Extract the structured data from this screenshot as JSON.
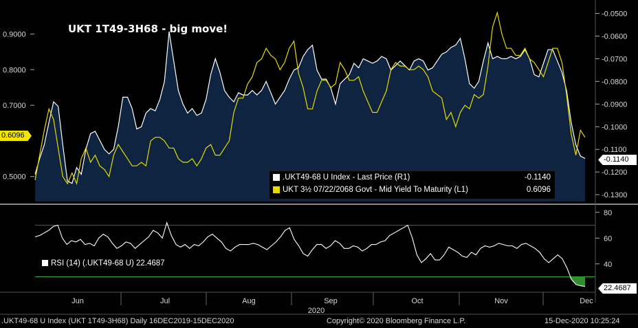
{
  "title": "UKT 1T49-3H68 - big move!",
  "legend": {
    "series1_label": ".UKT49-68 U Index - Last Price (R1)",
    "series1_value": "-0.1140",
    "series2_label": "UKT 3½  07/22/2068 Govt - Mid Yield To Maturity (L1)",
    "series2_value": "0.6096",
    "rsi_label": "RSI (14) (.UKT49-68 U) 22.4687"
  },
  "tags": {
    "left_value": "0.6096",
    "right_value": "-0.1140",
    "rsi_value": "22.4687"
  },
  "footer": {
    "left": ".UKT49-68 U Index (UKT 1T49-3H68)  Daily 16DEC2019-15DEC2020",
    "center": "Copyright© 2020 Bloomberg Finance L.P.",
    "right": "15-Dec-2020  10:25:24"
  },
  "x_year_label": "2020",
  "colors": {
    "spread_line": "#ffffff",
    "spread_fill": "#0e2440",
    "yield_line": "#e6dc00",
    "rsi_upper": "#d02020",
    "rsi_lower": "#3aa63a",
    "rsi_low_fill": "#2f8f2f"
  },
  "chart_data": [
    {
      "type": "line",
      "x_labels": [
        "Jun",
        "Jul",
        "Aug",
        "Sep",
        "Oct",
        "Nov",
        "Dec"
      ],
      "y_left_ticks": [
        "0.9000",
        "0.8000",
        "0.7000",
        "0.5000"
      ],
      "y_left_range": [
        0.43,
        0.98
      ],
      "y_right_ticks": [
        "-0.0500",
        "-0.0600",
        "-0.0700",
        "-0.0800",
        "-0.0900",
        "-0.1000",
        "-0.1100",
        "-0.1200",
        "-0.1300"
      ],
      "y_right_range": [
        -0.133,
        -0.0465
      ],
      "series": [
        {
          "name": ".UKT49-68 U Index - Last Price (R1)",
          "axis": "right",
          "values": [
            -0.121,
            -0.114,
            -0.108,
            -0.098,
            -0.089,
            -0.091,
            -0.108,
            -0.124,
            -0.125,
            -0.118,
            -0.121,
            -0.11,
            -0.103,
            -0.102,
            -0.106,
            -0.11,
            -0.112,
            -0.11,
            -0.1,
            -0.087,
            -0.087,
            -0.092,
            -0.101,
            -0.1,
            -0.094,
            -0.092,
            -0.093,
            -0.088,
            -0.08,
            -0.058,
            -0.071,
            -0.084,
            -0.09,
            -0.094,
            -0.092,
            -0.095,
            -0.094,
            -0.088,
            -0.077,
            -0.07,
            -0.076,
            -0.084,
            -0.087,
            -0.089,
            -0.085,
            -0.086,
            -0.086,
            -0.084,
            -0.086,
            -0.084,
            -0.08,
            -0.085,
            -0.09,
            -0.087,
            -0.084,
            -0.079,
            -0.075,
            -0.074,
            -0.069,
            -0.066,
            -0.064,
            -0.075,
            -0.079,
            -0.079,
            -0.083,
            -0.09,
            -0.081,
            -0.079,
            -0.077,
            -0.072,
            -0.074,
            -0.07,
            -0.071,
            -0.072,
            -0.071,
            -0.069,
            -0.07,
            -0.075,
            -0.073,
            -0.071,
            -0.073,
            -0.075,
            -0.071,
            -0.07,
            -0.071,
            -0.075,
            -0.074,
            -0.071,
            -0.068,
            -0.067,
            -0.065,
            -0.064,
            -0.061,
            -0.07,
            -0.081,
            -0.083,
            -0.08,
            -0.071,
            -0.063,
            -0.07,
            -0.069,
            -0.07,
            -0.07,
            -0.069,
            -0.07,
            -0.069,
            -0.066,
            -0.07,
            -0.077,
            -0.078,
            -0.072,
            -0.066,
            -0.066,
            -0.071,
            -0.076,
            -0.084,
            -0.098,
            -0.108,
            -0.113,
            -0.114
          ]
        },
        {
          "name": "UKT 3½  07/22/2068 Govt - Mid Yield To Maturity (L1)",
          "axis": "left",
          "values": [
            0.49,
            0.56,
            0.63,
            0.69,
            0.66,
            0.58,
            0.5,
            0.48,
            0.51,
            0.48,
            0.55,
            0.58,
            0.54,
            0.56,
            0.53,
            0.52,
            0.5,
            0.56,
            0.59,
            0.57,
            0.55,
            0.53,
            0.53,
            0.54,
            0.53,
            0.6,
            0.61,
            0.61,
            0.6,
            0.58,
            0.58,
            0.55,
            0.54,
            0.54,
            0.55,
            0.53,
            0.55,
            0.58,
            0.59,
            0.56,
            0.56,
            0.58,
            0.6,
            0.68,
            0.72,
            0.72,
            0.76,
            0.78,
            0.82,
            0.83,
            0.86,
            0.84,
            0.83,
            0.8,
            0.82,
            0.86,
            0.88,
            0.79,
            0.75,
            0.69,
            0.69,
            0.74,
            0.77,
            0.77,
            0.75,
            0.76,
            0.82,
            0.8,
            0.77,
            0.77,
            0.78,
            0.74,
            0.71,
            0.68,
            0.68,
            0.71,
            0.74,
            0.8,
            0.82,
            0.81,
            0.81,
            0.8,
            0.8,
            0.81,
            0.8,
            0.78,
            0.74,
            0.73,
            0.72,
            0.66,
            0.68,
            0.64,
            0.68,
            0.7,
            0.69,
            0.73,
            0.72,
            0.73,
            0.81,
            0.92,
            0.96,
            0.9,
            0.86,
            0.86,
            0.84,
            0.84,
            0.86,
            0.83,
            0.82,
            0.8,
            0.78,
            0.82,
            0.86,
            0.86,
            0.82,
            0.73,
            0.62,
            0.56,
            0.63,
            0.61
          ]
        }
      ]
    },
    {
      "type": "line",
      "name": "RSI (14) (.UKT49-68 U)",
      "y_ticks": [
        "80",
        "60",
        "40"
      ],
      "y_range": [
        18,
        82
      ],
      "thresholds": [
        70,
        30
      ],
      "series": [
        {
          "name": "RSI (14) (.UKT49-68 U)",
          "values": [
            61,
            62,
            64,
            66,
            69,
            70,
            60,
            55,
            58,
            57,
            59,
            55,
            56,
            54,
            60,
            63,
            61,
            56,
            52,
            54,
            57,
            56,
            52,
            55,
            58,
            61,
            66,
            64,
            60,
            72,
            62,
            55,
            53,
            55,
            52,
            55,
            54,
            57,
            61,
            63,
            60,
            57,
            52,
            50,
            53,
            55,
            55,
            55,
            56,
            55,
            53,
            51,
            54,
            57,
            61,
            66,
            68,
            59,
            54,
            48,
            46,
            51,
            55,
            55,
            52,
            54,
            58,
            56,
            52,
            52,
            54,
            53,
            50,
            52,
            55,
            55,
            57,
            58,
            62,
            64,
            66,
            68,
            70,
            60,
            47,
            41,
            44,
            48,
            43,
            43,
            47,
            53,
            51,
            49,
            46,
            45,
            49,
            47,
            52,
            54,
            53,
            54,
            56,
            55,
            54,
            54,
            52,
            55,
            56,
            54,
            52,
            49,
            44,
            41,
            44,
            47,
            44,
            37,
            28,
            24,
            23,
            22.5
          ]
        }
      ]
    }
  ]
}
